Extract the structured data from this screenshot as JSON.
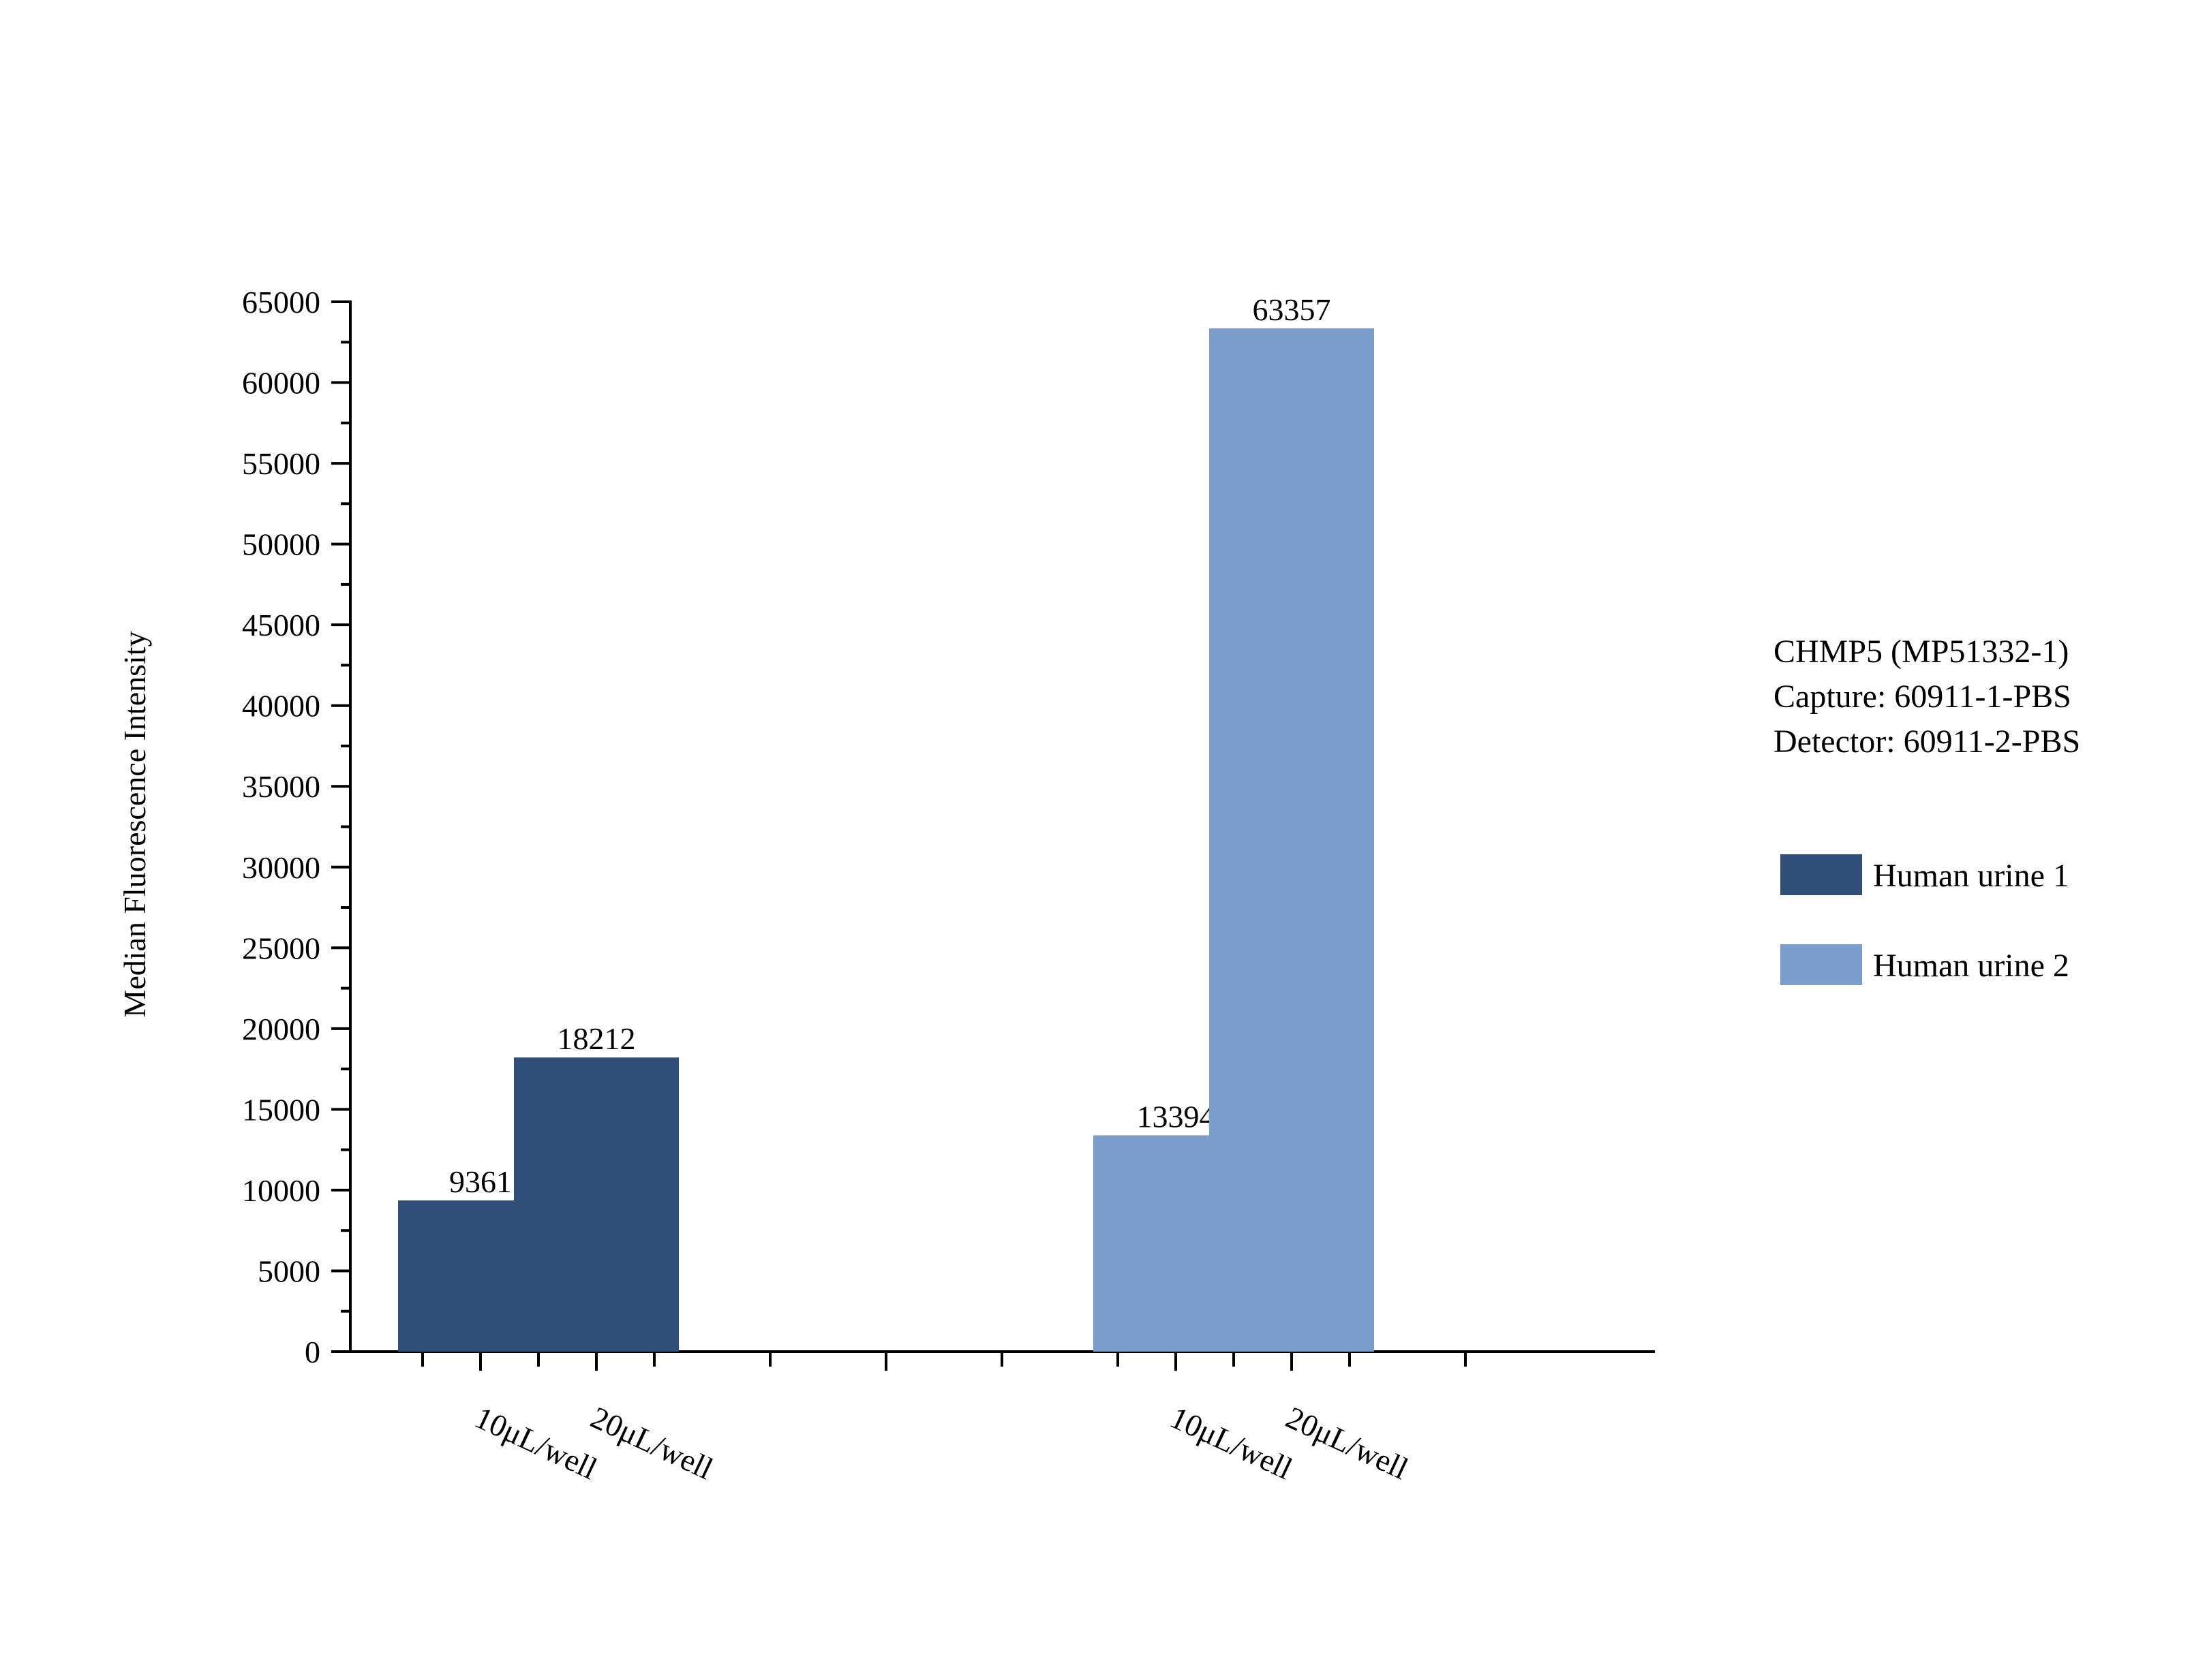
{
  "chart_data": {
    "type": "bar",
    "title": "",
    "xlabel": "",
    "ylabel": "Median Fluorescence Intensity",
    "ylim": [
      0,
      65000
    ],
    "y_major_step": 5000,
    "y_minor_step": 2500,
    "grid": false,
    "legend_position": "right",
    "annotation_lines": [
      "CHMP5 (MP51332-1)",
      "Capture: 60911-1-PBS",
      "Detector: 60911-2-PBS"
    ],
    "series": [
      {
        "name": "Human urine 1",
        "color": "#2f4f79",
        "categories": [
          "10μL/well",
          "20μL/well"
        ],
        "values": [
          9361,
          18212
        ]
      },
      {
        "name": "Human urine 2",
        "color": "#7c9ecd",
        "categories": [
          "10μL/well",
          "20μL/well"
        ],
        "values": [
          13394,
          63357
        ]
      }
    ]
  }
}
